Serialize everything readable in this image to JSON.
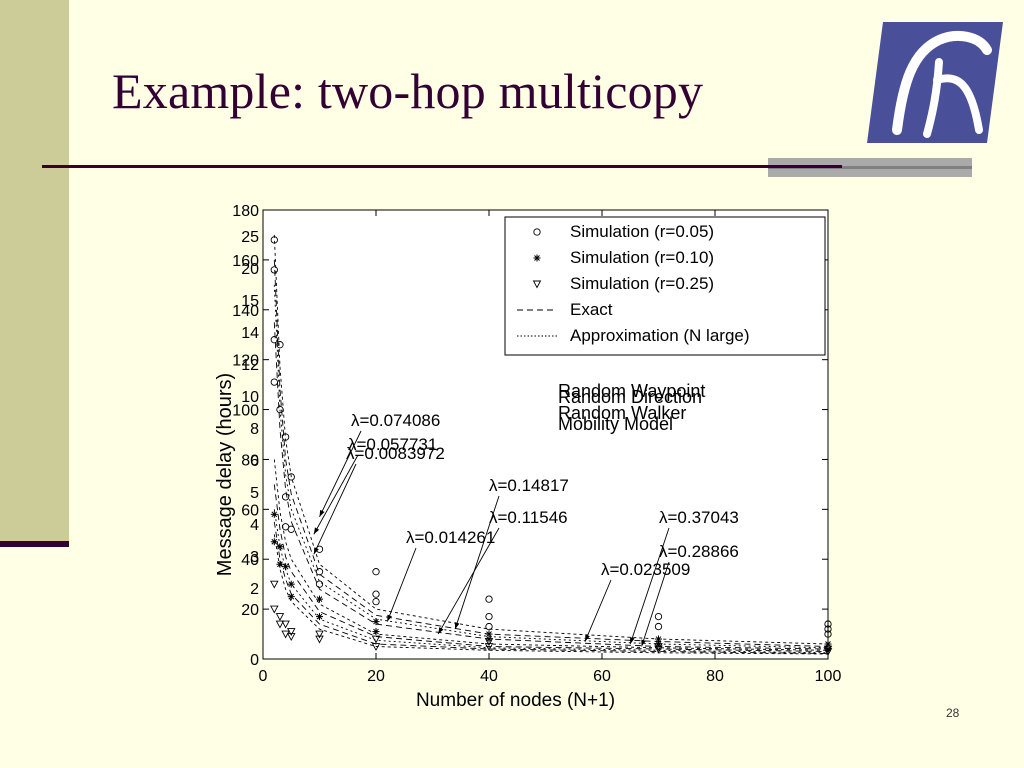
{
  "slide": {
    "title": "Example: two-hop multicopy",
    "page_number": "28",
    "logo_name": "logo-icon"
  },
  "colors": {
    "background": "#ffffe6",
    "left_strip": "#cccc99",
    "title_text": "#330033",
    "rule": "#330033",
    "logo_blue": "#4a4f9a",
    "chart_bg": "#ffffff",
    "chart_ink": "#000000"
  },
  "chart_data": {
    "type": "line",
    "xlabel": "Number of nodes (N+1)",
    "ylabel": "Message delay (hours)",
    "xlim": [
      0,
      100
    ],
    "ylim": [
      0,
      180
    ],
    "grid": false,
    "legend_position": "top-right",
    "x_tick_labels": [
      "0",
      "20",
      "40",
      "60",
      "80",
      "100"
    ],
    "y_tick_labels": [
      "0",
      "20",
      "40",
      "60",
      "80",
      "100",
      "120",
      "140",
      "160",
      "180"
    ],
    "overlay_y_tick_labels": [
      "2",
      "3",
      "4",
      "5",
      "6",
      "8",
      "10",
      "12",
      "14",
      "15",
      "20",
      "25"
    ],
    "legend": [
      {
        "label": "Simulation (r=0.05)",
        "marker": "circle"
      },
      {
        "label": "Simulation (r=0.10)",
        "marker": "star"
      },
      {
        "label": "Simulation (r=0.25)",
        "marker": "triangle"
      },
      {
        "label": "Exact",
        "line": "dashed"
      },
      {
        "label": "Approximation (N large)",
        "line": "dotted"
      }
    ],
    "mobility_text": [
      "Random Waypoint",
      "Random Direction",
      "Random Walker",
      "Mobility Model"
    ],
    "annotations": [
      {
        "text": "λ=0.074086",
        "arrow_to_x": 10,
        "arrow_to_y": 57
      },
      {
        "text": "λ=0.057731",
        "arrow_to_x": 9,
        "arrow_to_y": 50
      },
      {
        "text": "λ=0.0083972",
        "arrow_to_x": 9,
        "arrow_to_y": 42
      },
      {
        "text": "λ=0.14817",
        "arrow_to_x": 34,
        "arrow_to_y": 12
      },
      {
        "text": "λ=0.11546",
        "arrow_to_x": 31,
        "arrow_to_y": 10
      },
      {
        "text": "λ=0.014261",
        "arrow_to_x": 22,
        "arrow_to_y": 15
      },
      {
        "text": "λ=0.37043",
        "arrow_to_x": 65,
        "arrow_to_y": 6
      },
      {
        "text": "λ=0.28866",
        "arrow_to_x": 67,
        "arrow_to_y": 5
      },
      {
        "text": "λ=0.023509",
        "arrow_to_x": 57,
        "arrow_to_y": 7
      }
    ],
    "series": [
      {
        "values": [
          {
            "x": 2,
            "y": 170
          },
          {
            "x": 3,
            "y": 117
          },
          {
            "x": 4,
            "y": 88
          },
          {
            "x": 5,
            "y": 73
          },
          {
            "x": 10,
            "y": 38
          },
          {
            "x": 20,
            "y": 20
          },
          {
            "x": 40,
            "y": 12
          },
          {
            "x": 70,
            "y": 8
          },
          {
            "x": 100,
            "y": 6
          }
        ]
      },
      {
        "values": [
          {
            "x": 2,
            "y": 160
          },
          {
            "x": 3,
            "y": 108
          },
          {
            "x": 4,
            "y": 80
          },
          {
            "x": 5,
            "y": 66
          },
          {
            "x": 10,
            "y": 34
          },
          {
            "x": 20,
            "y": 17.5
          },
          {
            "x": 40,
            "y": 10
          },
          {
            "x": 70,
            "y": 7
          },
          {
            "x": 100,
            "y": 5
          }
        ]
      },
      {
        "values": [
          {
            "x": 2,
            "y": 150
          },
          {
            "x": 3,
            "y": 100
          },
          {
            "x": 4,
            "y": 74
          },
          {
            "x": 5,
            "y": 60
          },
          {
            "x": 10,
            "y": 31
          },
          {
            "x": 20,
            "y": 16
          },
          {
            "x": 40,
            "y": 9
          },
          {
            "x": 70,
            "y": 6
          },
          {
            "x": 100,
            "y": 4.5
          }
        ]
      },
      {
        "values": [
          {
            "x": 2,
            "y": 135
          },
          {
            "x": 3,
            "y": 92
          },
          {
            "x": 4,
            "y": 68
          },
          {
            "x": 5,
            "y": 55
          },
          {
            "x": 10,
            "y": 28
          },
          {
            "x": 20,
            "y": 14
          },
          {
            "x": 40,
            "y": 8
          },
          {
            "x": 70,
            "y": 5
          },
          {
            "x": 100,
            "y": 4
          }
        ]
      },
      {
        "values": [
          {
            "x": 2,
            "y": 80
          },
          {
            "x": 3,
            "y": 59
          },
          {
            "x": 4,
            "y": 47
          },
          {
            "x": 5,
            "y": 40
          },
          {
            "x": 10,
            "y": 22
          },
          {
            "x": 20,
            "y": 10
          },
          {
            "x": 40,
            "y": 6
          },
          {
            "x": 70,
            "y": 4.5
          },
          {
            "x": 100,
            "y": 3.5
          }
        ]
      },
      {
        "values": [
          {
            "x": 2,
            "y": 70
          },
          {
            "x": 3,
            "y": 52
          },
          {
            "x": 4,
            "y": 41
          },
          {
            "x": 5,
            "y": 35
          },
          {
            "x": 10,
            "y": 19
          },
          {
            "x": 20,
            "y": 9
          },
          {
            "x": 40,
            "y": 5
          },
          {
            "x": 70,
            "y": 4
          },
          {
            "x": 100,
            "y": 3
          }
        ]
      },
      {
        "values": [
          {
            "x": 2,
            "y": 60
          },
          {
            "x": 3,
            "y": 45
          },
          {
            "x": 4,
            "y": 36
          },
          {
            "x": 5,
            "y": 30
          },
          {
            "x": 10,
            "y": 16
          },
          {
            "x": 20,
            "y": 7.5
          },
          {
            "x": 40,
            "y": 4.5
          },
          {
            "x": 70,
            "y": 3.5
          },
          {
            "x": 100,
            "y": 2.5
          }
        ]
      },
      {
        "values": [
          {
            "x": 2,
            "y": 55
          },
          {
            "x": 3,
            "y": 40
          },
          {
            "x": 4,
            "y": 32
          },
          {
            "x": 5,
            "y": 26
          },
          {
            "x": 10,
            "y": 14
          },
          {
            "x": 20,
            "y": 6
          },
          {
            "x": 40,
            "y": 4
          },
          {
            "x": 70,
            "y": 3
          },
          {
            "x": 100,
            "y": 2.2
          }
        ]
      },
      {
        "values": [
          {
            "x": 2,
            "y": 50
          },
          {
            "x": 3,
            "y": 36
          },
          {
            "x": 4,
            "y": 28
          },
          {
            "x": 5,
            "y": 23
          },
          {
            "x": 10,
            "y": 12
          },
          {
            "x": 20,
            "y": 5
          },
          {
            "x": 40,
            "y": 3.5
          },
          {
            "x": 70,
            "y": 2.5
          },
          {
            "x": 100,
            "y": 2
          }
        ]
      }
    ],
    "markers": [
      {
        "marker": "circle",
        "points": [
          {
            "x": 2,
            "y": 128
          },
          {
            "x": 2,
            "y": 111
          },
          {
            "x": 3,
            "y": 126
          },
          {
            "x": 4,
            "y": 89
          },
          {
            "x": 5,
            "y": 73
          },
          {
            "x": 5,
            "y": 52
          },
          {
            "x": 4,
            "y": 65
          },
          {
            "x": 10,
            "y": 44
          },
          {
            "x": 10,
            "y": 30
          },
          {
            "x": 10,
            "y": 35
          },
          {
            "x": 20,
            "y": 35
          },
          {
            "x": 20,
            "y": 26
          },
          {
            "x": 20,
            "y": 23
          },
          {
            "x": 40,
            "y": 24
          },
          {
            "x": 40,
            "y": 17
          },
          {
            "x": 40,
            "y": 13
          },
          {
            "x": 70,
            "y": 17
          },
          {
            "x": 70,
            "y": 13
          },
          {
            "x": 100,
            "y": 14
          },
          {
            "x": 100,
            "y": 10
          },
          {
            "x": 100,
            "y": 12
          },
          {
            "x": 2,
            "y": 168
          },
          {
            "x": 2,
            "y": 156
          },
          {
            "x": 3,
            "y": 100
          },
          {
            "x": 4,
            "y": 53
          }
        ]
      },
      {
        "marker": "star",
        "points": [
          {
            "x": 2,
            "y": 58
          },
          {
            "x": 2,
            "y": 47
          },
          {
            "x": 3,
            "y": 45
          },
          {
            "x": 3,
            "y": 38
          },
          {
            "x": 4,
            "y": 37
          },
          {
            "x": 5,
            "y": 30
          },
          {
            "x": 5,
            "y": 25
          },
          {
            "x": 10,
            "y": 24
          },
          {
            "x": 10,
            "y": 17
          },
          {
            "x": 20,
            "y": 15
          },
          {
            "x": 20,
            "y": 11
          },
          {
            "x": 40,
            "y": 10
          },
          {
            "x": 40,
            "y": 8
          },
          {
            "x": 70,
            "y": 8
          },
          {
            "x": 70,
            "y": 6
          },
          {
            "x": 100,
            "y": 6
          },
          {
            "x": 100,
            "y": 4
          }
        ]
      },
      {
        "marker": "triangle",
        "points": [
          {
            "x": 2,
            "y": 30
          },
          {
            "x": 2,
            "y": 20
          },
          {
            "x": 3,
            "y": 17
          },
          {
            "x": 3,
            "y": 14
          },
          {
            "x": 4,
            "y": 14
          },
          {
            "x": 4,
            "y": 10
          },
          {
            "x": 5,
            "y": 11
          },
          {
            "x": 5,
            "y": 9
          },
          {
            "x": 10,
            "y": 10
          },
          {
            "x": 10,
            "y": 8
          },
          {
            "x": 20,
            "y": 8
          },
          {
            "x": 20,
            "y": 5
          },
          {
            "x": 40,
            "y": 7
          },
          {
            "x": 40,
            "y": 5
          },
          {
            "x": 70,
            "y": 5
          },
          {
            "x": 70,
            "y": 4
          },
          {
            "x": 100,
            "y": 4
          },
          {
            "x": 100,
            "y": 3
          }
        ]
      }
    ]
  }
}
